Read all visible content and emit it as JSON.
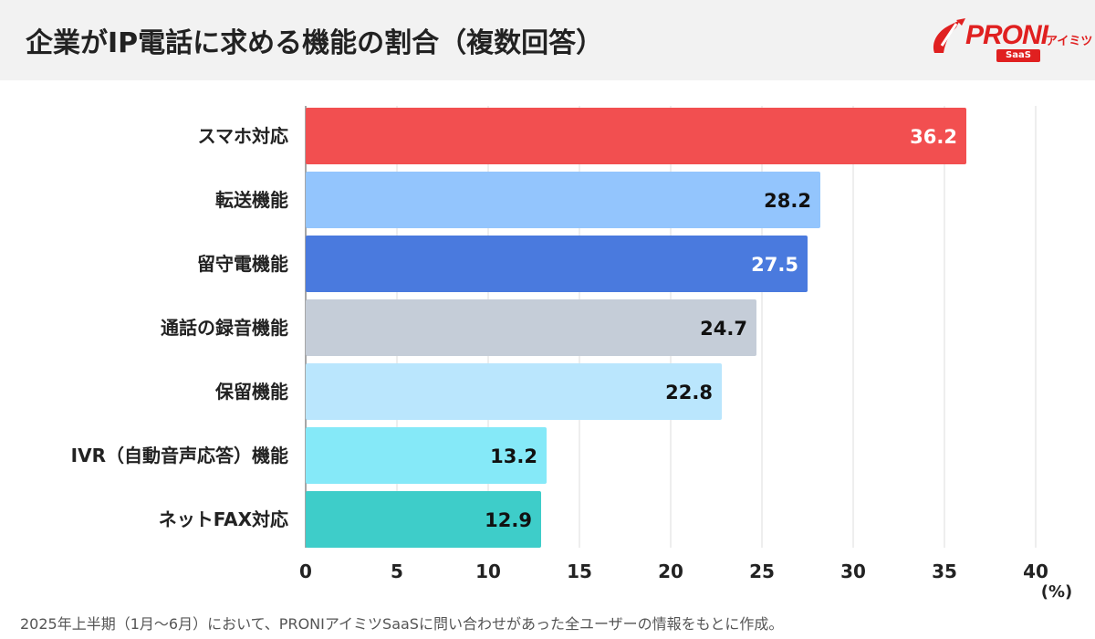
{
  "header": {
    "title": "企業がIP電話に求める機能の割合（複数回答）",
    "logo": {
      "brand": "PRONI",
      "suffix": "アイミツ",
      "sub": "SaaS",
      "icon": "pen-nib-icon",
      "color": "#e02020"
    }
  },
  "chart_data": {
    "type": "bar",
    "orientation": "horizontal",
    "title": "企業がIP電話に求める機能の割合（複数回答）",
    "xlabel": "",
    "ylabel": "",
    "unit": "(%)",
    "xlim": [
      0,
      40
    ],
    "ticks": [
      "0",
      "5",
      "10",
      "15",
      "20",
      "25",
      "30",
      "35",
      "40"
    ],
    "grid": true,
    "categories": [
      "スマホ対応",
      "転送機能",
      "留守電機能",
      "通話の録音機能",
      "保留機能",
      "IVR（自動音声応答）機能",
      "ネットFAX対応"
    ],
    "values": [
      36.2,
      28.2,
      27.5,
      24.7,
      22.8,
      13.2,
      12.9
    ],
    "value_labels": [
      "36.2",
      "28.2",
      "27.5",
      "24.7",
      "22.8",
      "13.2",
      "12.9"
    ],
    "colors": [
      "#f24f50",
      "#93c5fd",
      "#4a7ade",
      "#c5cdd8",
      "#bae6fd",
      "#85e9f8",
      "#3ecdc9"
    ],
    "label_colors": [
      "#ffffff",
      "#111111",
      "#ffffff",
      "#111111",
      "#111111",
      "#111111",
      "#111111"
    ]
  },
  "footnote": "2025年上半期（1月〜6月）において、PRONIアイミツSaaSに問い合わせがあった全ユーザーの情報をもとに作成。"
}
